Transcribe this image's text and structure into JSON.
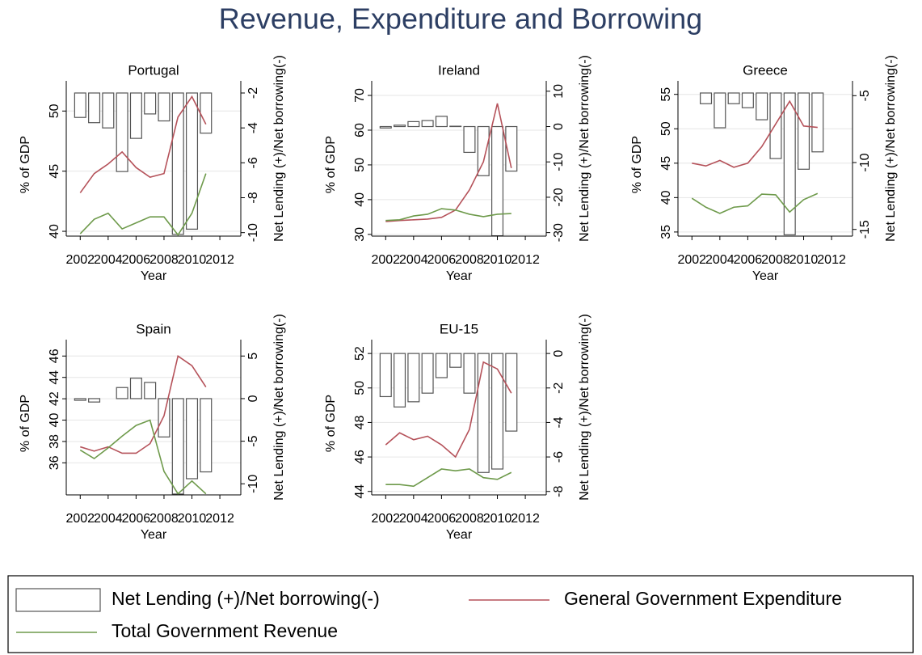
{
  "title": "Revenue, Expenditure and Borrowing",
  "legend": [
    {
      "name": "Net Lending (+)/Net borrowing(-)",
      "kind": "bar",
      "color": "#ffffff",
      "stroke": "#555555",
      "axis": "y2"
    },
    {
      "name": "General Government Expenditure",
      "kind": "line",
      "color": "#b5525a",
      "axis": "y"
    },
    {
      "name": "Total Government Revenue",
      "kind": "line",
      "color": "#6e9a4b",
      "axis": "y"
    }
  ],
  "chart_data": [
    {
      "type": "bar-line",
      "title": "Portugal",
      "xlabel": "Year",
      "ylabel": "% of GDP",
      "y2label": "Net Lending (+)/Net borrowing(-)",
      "x": [
        2002,
        2003,
        2004,
        2005,
        2006,
        2007,
        2008,
        2009,
        2010,
        2011
      ],
      "xlim": [
        2001,
        2013.5
      ],
      "xticks": [
        2002,
        2004,
        2006,
        2008,
        2010,
        2012
      ],
      "ylim": [
        39.6,
        51.5
      ],
      "yticks": [
        40,
        45,
        50
      ],
      "y2lim": [
        -10.2,
        -2
      ],
      "y2ticks": [
        -10,
        -8,
        -6,
        -4,
        -2
      ],
      "grid": true,
      "series": [
        {
          "values": [
            -3.4,
            -3.7,
            -4.0,
            -6.5,
            -4.6,
            -3.2,
            -3.6,
            -10.1,
            -9.8,
            -4.3
          ]
        },
        {
          "values": [
            43.2,
            44.8,
            45.6,
            46.6,
            45.3,
            44.5,
            44.8,
            49.5,
            51.2,
            48.9
          ]
        },
        {
          "values": [
            39.8,
            41.0,
            41.5,
            40.2,
            40.7,
            41.2,
            41.2,
            39.7,
            41.5,
            44.8
          ]
        }
      ]
    },
    {
      "type": "bar-line",
      "title": "Ireland",
      "xlabel": "Year",
      "ylabel": "% of GDP",
      "y2label": "Net Lending (+)/Net borrowing(-)",
      "x": [
        2002,
        2003,
        2004,
        2005,
        2006,
        2007,
        2008,
        2009,
        2010,
        2011
      ],
      "xlim": [
        2001,
        2013.5
      ],
      "xticks": [
        2002,
        2004,
        2006,
        2008,
        2010,
        2012
      ],
      "ylim": [
        29.5,
        70.7
      ],
      "yticks": [
        30,
        40,
        50,
        60,
        70
      ],
      "y2lim": [
        -31,
        9.5
      ],
      "y2ticks": [
        -30,
        -20,
        -10,
        0,
        10
      ],
      "grid": true,
      "series": [
        {
          "values": [
            -0.4,
            0.4,
            1.4,
            1.7,
            2.9,
            0.1,
            -7.3,
            -13.9,
            -30.9,
            -12.6
          ]
        },
        {
          "values": [
            33.7,
            34.0,
            34.2,
            34.4,
            34.9,
            37.0,
            42.8,
            50.9,
            67.7,
            49.1
          ]
        },
        {
          "values": [
            34.0,
            34.2,
            35.3,
            35.8,
            37.4,
            37.0,
            35.8,
            35.1,
            35.8,
            36.0
          ]
        }
      ]
    },
    {
      "type": "bar-line",
      "title": "Greece",
      "xlabel": "Year",
      "ylabel": "% of GDP",
      "y2label": "Net Lending (+)/Net borrowing(-)",
      "x": [
        2002,
        2003,
        2004,
        2005,
        2006,
        2007,
        2008,
        2009,
        2010,
        2011
      ],
      "xlim": [
        2001,
        2013.5
      ],
      "xticks": [
        2002,
        2004,
        2006,
        2008,
        2010,
        2012
      ],
      "ylim": [
        34.4,
        55.2
      ],
      "yticks": [
        35,
        40,
        45,
        50,
        55
      ],
      "y2lim": [
        -15.5,
        -4.8
      ],
      "y2ticks": [
        -15,
        -10,
        -5
      ],
      "grid": true,
      "series": [
        {
          "values": [
            -4.8,
            -5.6,
            -7.4,
            -5.6,
            -5.9,
            -6.8,
            -9.7,
            -15.4,
            -10.5,
            -9.2
          ]
        },
        {
          "values": [
            45.0,
            44.6,
            45.4,
            44.4,
            45.0,
            47.4,
            50.7,
            54.0,
            50.4,
            50.2
          ]
        },
        {
          "values": [
            39.9,
            38.6,
            37.7,
            38.6,
            38.8,
            40.5,
            40.4,
            37.9,
            39.7,
            40.6
          ]
        }
      ]
    },
    {
      "type": "bar-line",
      "title": "Spain",
      "xlabel": "Year",
      "ylabel": "% of GDP",
      "y2label": "Net Lending (+)/Net borrowing(-)",
      "x": [
        2002,
        2003,
        2004,
        2005,
        2006,
        2007,
        2008,
        2009,
        2010,
        2011
      ],
      "xlim": [
        2001,
        2013.5
      ],
      "xticks": [
        2002,
        2004,
        2006,
        2008,
        2010,
        2012
      ],
      "ylim": [
        33.0,
        46.4
      ],
      "yticks": [
        36,
        38,
        40,
        42,
        44,
        46
      ],
      "y2lim": [
        -11.3,
        5.5
      ],
      "y2ticks": [
        -10,
        -5,
        0,
        5
      ],
      "grid": true,
      "series": [
        {
          "values": [
            -0.2,
            -0.4,
            0.0,
            1.3,
            2.4,
            1.9,
            -4.5,
            -11.2,
            -9.4,
            -8.6
          ]
        },
        {
          "values": [
            37.5,
            37.1,
            37.5,
            36.9,
            36.9,
            37.8,
            40.4,
            46.0,
            45.1,
            43.1
          ]
        },
        {
          "values": [
            37.2,
            36.4,
            37.4,
            38.5,
            39.5,
            40.0,
            35.2,
            33.1,
            34.3,
            33.1
          ]
        }
      ]
    },
    {
      "type": "bar-line",
      "title": "EU-15",
      "xlabel": "Year",
      "ylabel": "% of GDP",
      "y2label": "Net Lending (+)/Net borrowing(-)",
      "x": [
        2002,
        2003,
        2004,
        2005,
        2006,
        2007,
        2008,
        2009,
        2010,
        2011
      ],
      "xlim": [
        2001,
        2013.5
      ],
      "xticks": [
        2002,
        2004,
        2006,
        2008,
        2010,
        2012
      ],
      "ylim": [
        43.8,
        52.1
      ],
      "yticks": [
        44,
        46,
        48,
        50,
        52
      ],
      "y2lim": [
        -8.2,
        0.1
      ],
      "y2ticks": [
        -8,
        -6,
        -4,
        -2,
        0
      ],
      "grid": true,
      "series": [
        {
          "values": [
            -2.5,
            -3.1,
            -2.8,
            -2.3,
            -1.4,
            -0.8,
            -2.3,
            -6.9,
            -6.7,
            -4.5
          ]
        },
        {
          "values": [
            46.7,
            47.4,
            47.0,
            47.2,
            46.7,
            46.0,
            47.6,
            51.5,
            51.1,
            49.7
          ]
        },
        {
          "values": [
            44.4,
            44.4,
            44.3,
            44.8,
            45.3,
            45.2,
            45.3,
            44.8,
            44.7,
            45.1
          ]
        }
      ]
    }
  ]
}
